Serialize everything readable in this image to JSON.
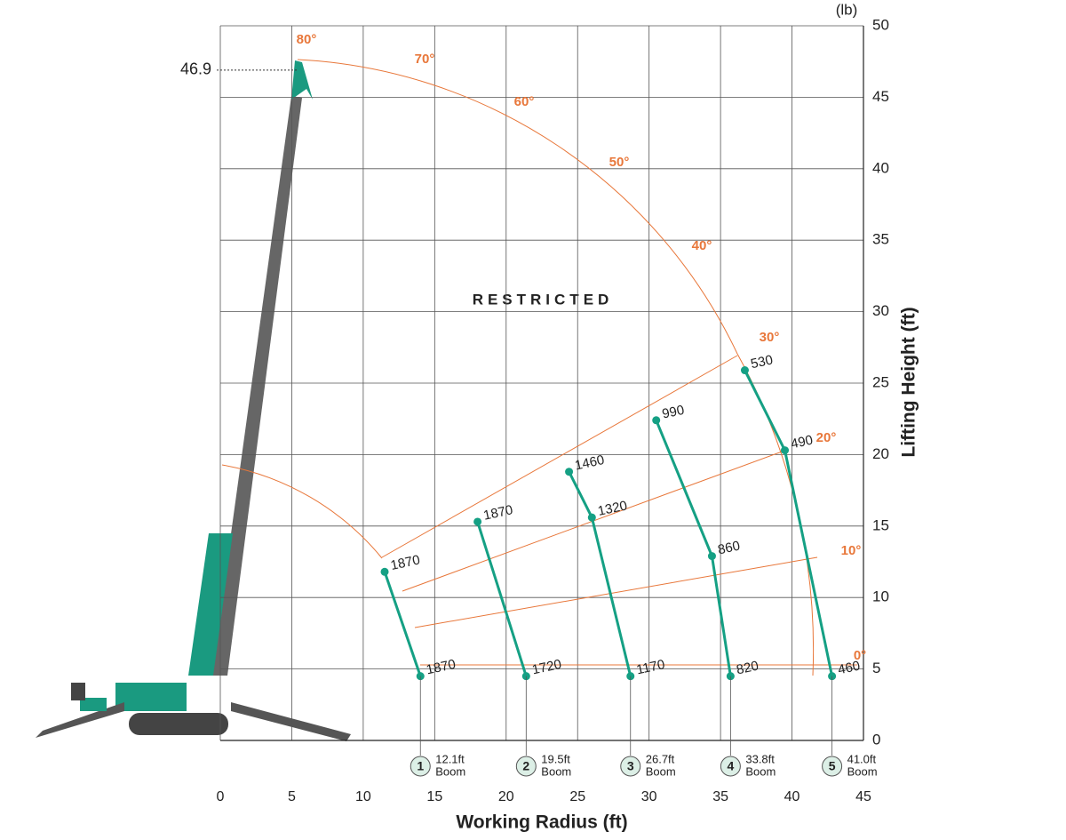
{
  "chart_data": {
    "type": "scatter",
    "unit_label": "(lb)",
    "x_label": "Working Radius (ft)",
    "y_label": "Lifting Height (ft)",
    "region_label": "RESTRICTED",
    "max_height": 46.9,
    "angle_labels": [
      "80°",
      "70°",
      "60°",
      "50°",
      "40°",
      "30°",
      "20°",
      "10°",
      "0°"
    ],
    "xlim": [
      0,
      45
    ],
    "xticks": [
      0,
      5,
      10,
      15,
      20,
      25,
      30,
      35,
      40,
      45
    ],
    "ylim": [
      0,
      50
    ],
    "yticks": [
      0,
      5,
      10,
      15,
      20,
      25,
      30,
      35,
      40,
      45,
      50
    ],
    "grid": true,
    "series": [
      {
        "number": "1",
        "name": "12.1ft",
        "unit": "Boom",
        "color": "#15a084",
        "x": [
          14.0,
          11.5
        ],
        "values": [
          4.5,
          11.8
        ],
        "loads": [
          1870,
          1870
        ]
      },
      {
        "number": "2",
        "name": "19.5ft",
        "unit": "Boom",
        "color": "#15a084",
        "x": [
          21.4,
          18.0
        ],
        "values": [
          4.5,
          15.3
        ],
        "loads": [
          1720,
          1870
        ]
      },
      {
        "number": "3",
        "name": "26.7ft",
        "unit": "Boom",
        "color": "#15a084",
        "x": [
          28.7,
          26.0,
          24.4
        ],
        "values": [
          4.5,
          15.6,
          18.8
        ],
        "loads": [
          1170,
          1320,
          1460
        ]
      },
      {
        "number": "4",
        "name": "33.8ft",
        "unit": "Boom",
        "color": "#15a084",
        "x": [
          35.7,
          34.4,
          30.5
        ],
        "values": [
          4.5,
          12.9,
          22.4
        ],
        "loads": [
          820,
          860,
          990
        ]
      },
      {
        "number": "5",
        "name": "41.0ft",
        "unit": "Boom",
        "color": "#15a084",
        "x": [
          42.8,
          39.5,
          36.7
        ],
        "values": [
          4.5,
          20.3,
          25.9
        ],
        "loads": [
          460,
          490,
          530
        ]
      }
    ]
  }
}
